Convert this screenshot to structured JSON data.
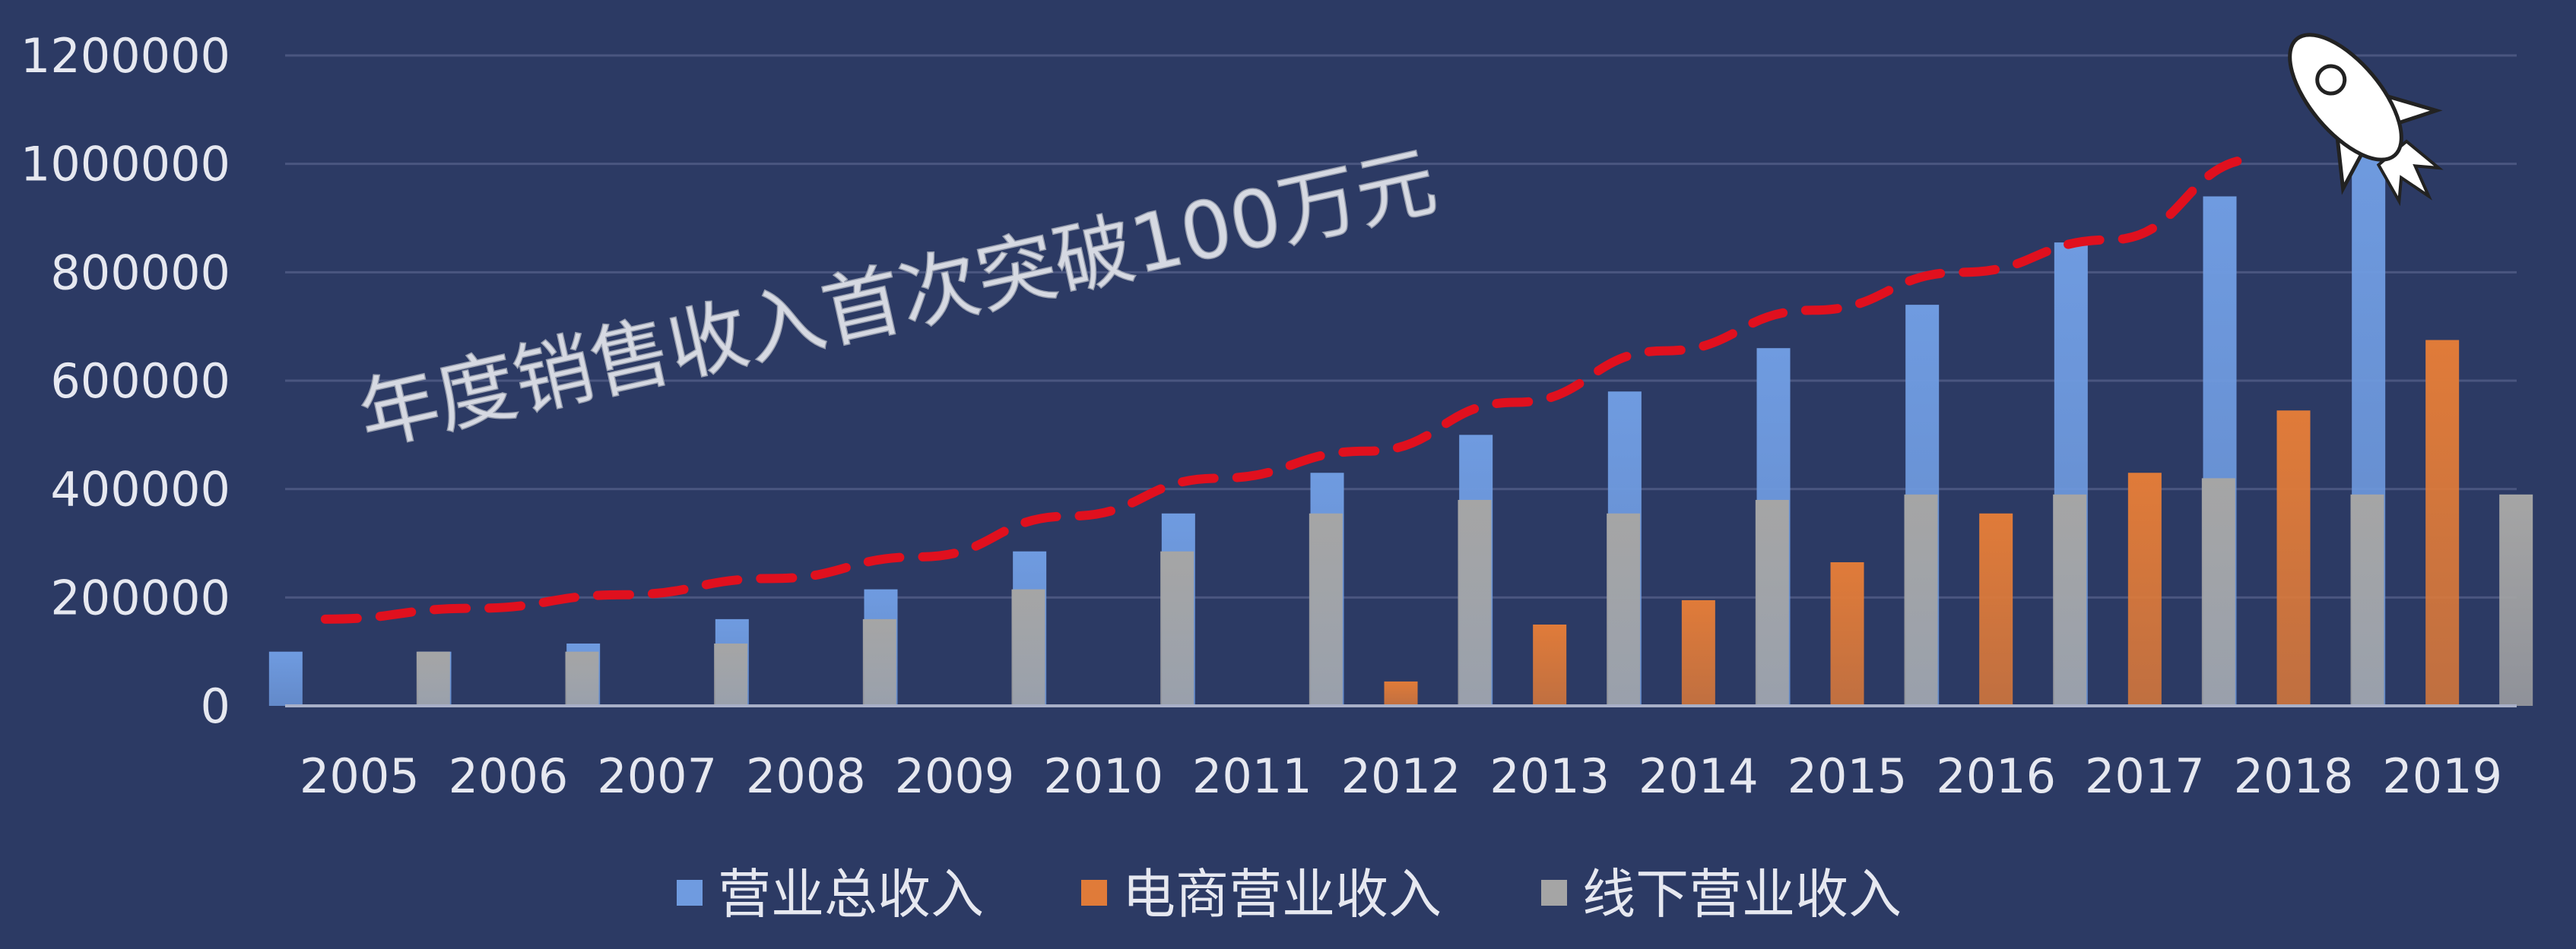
{
  "chart_data": {
    "type": "bar",
    "title": "",
    "xlabel": "",
    "ylabel": "",
    "ylim": [
      0,
      1200000
    ],
    "yticks": [
      0,
      200000,
      400000,
      600000,
      800000,
      1000000,
      1200000
    ],
    "categories": [
      "2005",
      "2006",
      "2007",
      "2008",
      "2009",
      "2010",
      "2011",
      "2012",
      "2013",
      "2014",
      "2015",
      "2016",
      "2017",
      "2018",
      "2019"
    ],
    "series": [
      {
        "name": "营业总收入",
        "color": "#6f9be0",
        "values": [
          100000,
          100000,
          115000,
          160000,
          215000,
          285000,
          355000,
          430000,
          500000,
          580000,
          660000,
          740000,
          855000,
          940000,
          1075000
        ]
      },
      {
        "name": "电商营业收入",
        "color": "#e07b39",
        "values": [
          0,
          0,
          0,
          0,
          0,
          0,
          0,
          45000,
          150000,
          195000,
          265000,
          355000,
          430000,
          545000,
          675000
        ]
      },
      {
        "name": "线下营业收入",
        "color": "#a5a5a5",
        "values": [
          100000,
          100000,
          115000,
          160000,
          215000,
          285000,
          355000,
          380000,
          355000,
          380000,
          390000,
          390000,
          420000,
          390000,
          390000
        ]
      }
    ],
    "trend_line": {
      "color": "#e0101e",
      "style": "dashed",
      "values": [
        160000,
        180000,
        205000,
        235000,
        275000,
        350000,
        420000,
        470000,
        560000,
        655000,
        730000,
        800000,
        860000,
        1010000
      ]
    },
    "annotation": "年度销售收入首次突破100万元",
    "legend_position": "bottom",
    "grid": true,
    "icons": [
      "rocket-icon"
    ]
  }
}
